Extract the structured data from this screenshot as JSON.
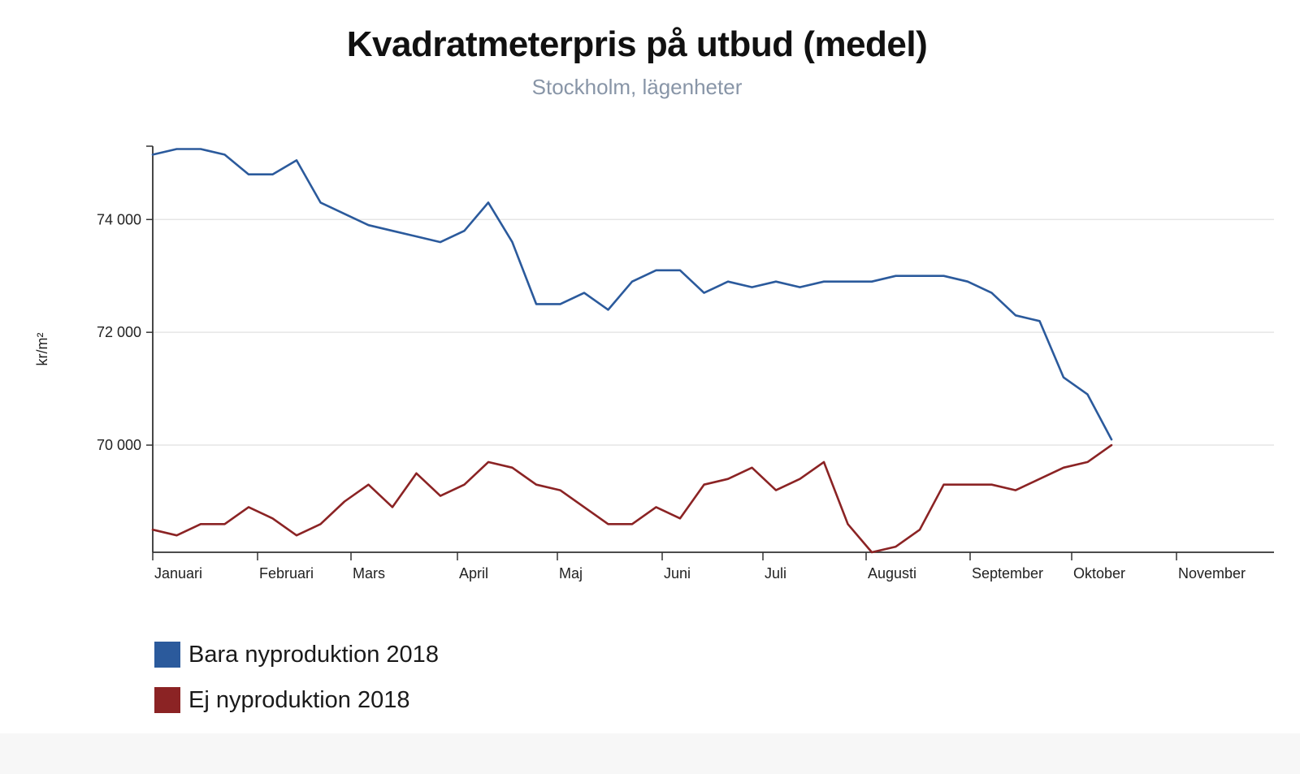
{
  "chart_data": {
    "type": "line",
    "title": "Kvadratmeterpris på utbud (medel)",
    "subtitle": "Stockholm, lägenheter",
    "ylabel": "kr/m²",
    "xlabel": "",
    "ylim": [
      68100,
      75300
    ],
    "yticks": [
      70000,
      72000,
      74000
    ],
    "ytick_labels": [
      "70 000",
      "72 000",
      "74 000"
    ],
    "grid": true,
    "legend_position": "bottom-left",
    "months": [
      "Januari",
      "Februari",
      "Mars",
      "April",
      "Maj",
      "Juni",
      "Juli",
      "Augusti",
      "September",
      "Oktober",
      "November"
    ],
    "x_unit": "week index (0 = start of Januari)",
    "series": [
      {
        "name": "Bara nyproduktion 2018",
        "color": "#2b5a9c",
        "points": [
          [
            0,
            75150
          ],
          [
            1,
            75250
          ],
          [
            2,
            75250
          ],
          [
            3,
            75150
          ],
          [
            4,
            74800
          ],
          [
            5,
            74800
          ],
          [
            6,
            75050
          ],
          [
            7,
            74300
          ],
          [
            8,
            74100
          ],
          [
            9,
            73900
          ],
          [
            10,
            73800
          ],
          [
            11,
            73700
          ],
          [
            12,
            73600
          ],
          [
            13,
            73800
          ],
          [
            14,
            74300
          ],
          [
            15,
            73600
          ],
          [
            16,
            72500
          ],
          [
            17,
            72500
          ],
          [
            18,
            72700
          ],
          [
            19,
            72400
          ],
          [
            20,
            72900
          ],
          [
            21,
            73100
          ],
          [
            22,
            73100
          ],
          [
            23,
            72700
          ],
          [
            24,
            72900
          ],
          [
            25,
            72800
          ],
          [
            26,
            72900
          ],
          [
            27,
            72800
          ],
          [
            28,
            72900
          ],
          [
            29,
            72900
          ],
          [
            30,
            72900
          ],
          [
            31,
            73000
          ],
          [
            32,
            73000
          ],
          [
            33,
            73000
          ],
          [
            34,
            72900
          ],
          [
            35,
            72700
          ],
          [
            36,
            72300
          ],
          [
            37,
            72200
          ],
          [
            38,
            71200
          ],
          [
            39,
            70900
          ],
          [
            40,
            70100
          ]
        ]
      },
      {
        "name": "Ej nyproduktion 2018",
        "color": "#8b2324",
        "points": [
          [
            0,
            68500
          ],
          [
            1,
            68400
          ],
          [
            2,
            68600
          ],
          [
            3,
            68600
          ],
          [
            4,
            68900
          ],
          [
            5,
            68700
          ],
          [
            6,
            68400
          ],
          [
            7,
            68600
          ],
          [
            8,
            69000
          ],
          [
            9,
            69300
          ],
          [
            10,
            68900
          ],
          [
            11,
            69500
          ],
          [
            12,
            69100
          ],
          [
            13,
            69300
          ],
          [
            14,
            69700
          ],
          [
            15,
            69600
          ],
          [
            16,
            69300
          ],
          [
            17,
            69200
          ],
          [
            18,
            68900
          ],
          [
            19,
            68600
          ],
          [
            20,
            68600
          ],
          [
            21,
            68900
          ],
          [
            22,
            68700
          ],
          [
            23,
            69300
          ],
          [
            24,
            69400
          ],
          [
            25,
            69600
          ],
          [
            26,
            69200
          ],
          [
            27,
            69400
          ],
          [
            28,
            69700
          ],
          [
            29,
            68600
          ],
          [
            30,
            68100
          ],
          [
            31,
            68200
          ],
          [
            32,
            68500
          ],
          [
            33,
            69300
          ],
          [
            34,
            69300
          ],
          [
            35,
            69300
          ],
          [
            36,
            69200
          ],
          [
            37,
            69400
          ],
          [
            38,
            69600
          ],
          [
            39,
            69700
          ],
          [
            40,
            70000
          ]
        ]
      }
    ]
  }
}
